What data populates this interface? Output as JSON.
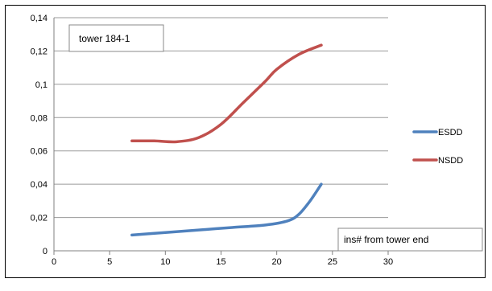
{
  "chart_data": {
    "type": "line",
    "title": "",
    "xlabel": "",
    "ylabel": "",
    "xlim": [
      0,
      30
    ],
    "ylim": [
      0,
      0.14
    ],
    "x_ticks": [
      0,
      5,
      10,
      15,
      20,
      25,
      30
    ],
    "x_tick_labels": [
      "0",
      "5",
      "10",
      "15",
      "20",
      "25",
      "30"
    ],
    "y_ticks": [
      0,
      0.02,
      0.04,
      0.06,
      0.08,
      0.1,
      0.12,
      0.14
    ],
    "y_tick_labels": [
      "0",
      "0,02",
      "0,04",
      "0,06",
      "0,08",
      "0,1",
      "0,12",
      "0,14"
    ],
    "grid": "horizontal",
    "legend_position": "right",
    "series": [
      {
        "name": "ESDD",
        "color": "#4f81bd",
        "x": [
          7,
          10,
          13,
          16,
          19,
          21,
          22,
          23,
          24
        ],
        "y": [
          0.0095,
          0.011,
          0.0125,
          0.014,
          0.0155,
          0.018,
          0.022,
          0.03,
          0.04
        ]
      },
      {
        "name": "NSDD",
        "color": "#c0504d",
        "x": [
          7,
          9,
          11,
          13,
          15,
          17,
          19,
          20,
          22,
          24
        ],
        "y": [
          0.066,
          0.066,
          0.0655,
          0.068,
          0.076,
          0.089,
          0.102,
          0.109,
          0.118,
          0.1235
        ]
      }
    ],
    "annotations": [
      "tower 184-1",
      "ins# from tower end"
    ]
  }
}
